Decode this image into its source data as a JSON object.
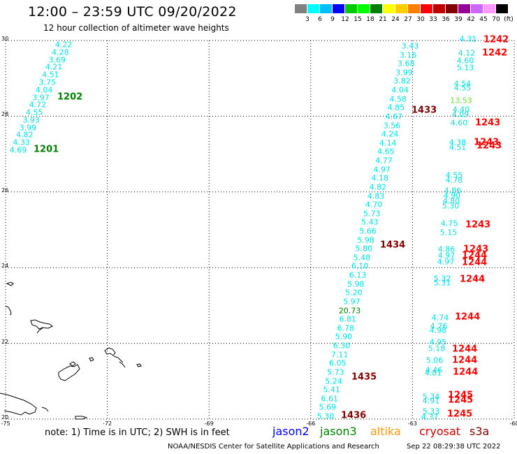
{
  "header": {
    "title": "12:00 – 23:59 UTC 09/20/2022",
    "subtitle": "12 hour collection of altimeter wave heights"
  },
  "colorbar": {
    "swatches": [
      "#808080",
      "#00ffff",
      "#00bfff",
      "#0000ff",
      "#00cc00",
      "#00ff00",
      "#008000",
      "#ffff00",
      "#ffcc00",
      "#ff8000",
      "#ff0000",
      "#c00000",
      "#800000",
      "#990099",
      "#cc66ff",
      "#ff99ff",
      "#000000"
    ],
    "labels": [
      "3",
      "6",
      "9",
      "12",
      "15",
      "18",
      "21",
      "24",
      "27",
      "30",
      "33",
      "36",
      "39",
      "42",
      "45",
      "70",
      "(ft)"
    ]
  },
  "axes": {
    "y_labels": [
      "30",
      "28",
      "26",
      "24",
      "22",
      "20"
    ],
    "x_labels": [
      "-75",
      "-72",
      "-69",
      "-66",
      "-63",
      "-60"
    ],
    "lat_range": [
      20,
      30
    ],
    "lon_range": [
      -75,
      -60
    ]
  },
  "tracks": [
    {
      "id": "track_left",
      "color": "#00e0e0",
      "values": [
        "4.22",
        "4.28",
        "3.69",
        "4.21",
        "4.51",
        "3.75",
        "4.04",
        "3.97",
        "4.72",
        "4.55",
        "3.93",
        "3.99",
        "4.82",
        "4.33",
        "4.69"
      ]
    },
    {
      "id": "track_mid",
      "color": "#00e0e0",
      "values": [
        "3.43",
        "3.16",
        "3.68",
        "3.99",
        "3.82",
        "4.04",
        "4.58",
        "4.85",
        "4.67",
        "3.56",
        "4.24",
        "4.14",
        "4.65",
        "4.77",
        "4.97",
        "4.18",
        "4.82",
        "4.83",
        "4.70",
        "5.73",
        "5.43",
        "5.66",
        "5.98",
        "5.80",
        "5.48",
        "6.10",
        "6.13",
        "5.98",
        "5.20",
        "5.97",
        "20.73",
        "6.81",
        "6.78",
        "5.90",
        "6.30",
        "7.11",
        "6.05",
        "5.73",
        "5.24",
        "5.41",
        "6.61",
        "5.69",
        "5.30"
      ]
    },
    {
      "id": "track_right",
      "color": "#00e0e0",
      "values": [
        "4.31",
        "4.12",
        "4.60",
        "5.13",
        "4.54",
        "4.55",
        "13.53",
        "4.40",
        "4.09",
        "4.60",
        "4.38",
        "4.51",
        "4.55",
        "4.78",
        "4.86",
        "4.90",
        "4.80",
        "5.30",
        "4.75",
        "5.15",
        "4.86",
        "4.97",
        "4.97",
        "5.32",
        "5.31",
        "4.74",
        "4.76",
        "4.98",
        "4.95",
        "5.18",
        "5.06",
        "4.46",
        "4.81",
        "5.34",
        "4.91",
        "5.33",
        "4.37"
      ]
    }
  ],
  "track_highlight_color": "#008000",
  "pass_labels": [
    {
      "text": "1202",
      "color": "#008000"
    },
    {
      "text": "1201",
      "color": "#008000"
    },
    {
      "text": "1433",
      "color": "#800000"
    },
    {
      "text": "1434",
      "color": "#800000"
    },
    {
      "text": "1435",
      "color": "#800000"
    },
    {
      "text": "1436",
      "color": "#800000"
    },
    {
      "text": "1242",
      "color": "#ff0000"
    },
    {
      "text": "1242",
      "color": "#ff0000"
    },
    {
      "text": "1243",
      "color": "#ff0000"
    },
    {
      "text": "1243",
      "color": "#ff0000"
    },
    {
      "text": "1243",
      "color": "#ff0000"
    },
    {
      "text": "1243",
      "color": "#ff0000"
    },
    {
      "text": "1243",
      "color": "#ff0000"
    },
    {
      "text": "1244",
      "color": "#ff0000"
    },
    {
      "text": "1244",
      "color": "#ff0000"
    },
    {
      "text": "1244",
      "color": "#ff0000"
    },
    {
      "text": "1244",
      "color": "#ff0000"
    },
    {
      "text": "1244",
      "color": "#ff0000"
    },
    {
      "text": "1244",
      "color": "#ff0000"
    },
    {
      "text": "1244",
      "color": "#ff0000"
    },
    {
      "text": "1245",
      "color": "#ff0000"
    },
    {
      "text": "1245",
      "color": "#ff0000"
    },
    {
      "text": "1245",
      "color": "#ff0000"
    }
  ],
  "footer": {
    "note": "note:  1) Time is in UTC;  2) SWH is in feet",
    "legend": [
      {
        "text": "jason2",
        "color": "#0000ff"
      },
      {
        "text": "jason3",
        "color": "#008000"
      },
      {
        "text": "altika",
        "color": "#ff9900"
      },
      {
        "text": "cryosat",
        "color": "#cc0000"
      },
      {
        "text": "s3a",
        "color": "#800000"
      }
    ],
    "credit": "NOAA/NESDIS Center for Satellite Applications and Research",
    "timestamp": "Sep 22 08:29:38 UTC 2022"
  }
}
